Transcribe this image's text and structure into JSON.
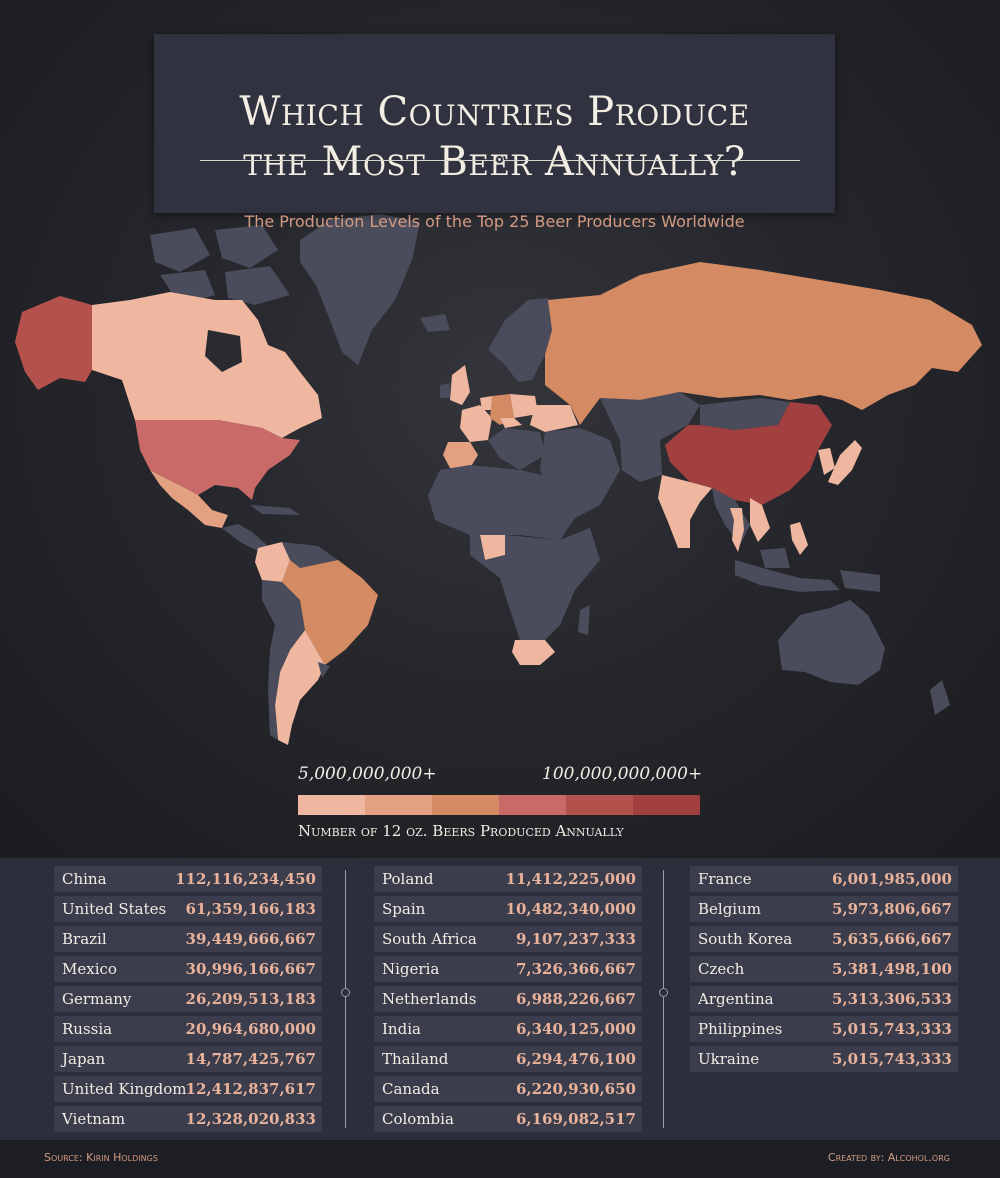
{
  "title": {
    "line1": "Which Countries Produce",
    "line2": "the Most Beer Annually?",
    "subtitle": "The Production Levels of the Top 25 Beer Producers Worldwide"
  },
  "legend": {
    "min_label": "5,000,000,000+",
    "max_label": "100,000,000,000+",
    "caption": "Number of 12 oz. Beers Produced Annually",
    "colors": [
      "#efb7a0",
      "#e3a181",
      "#d48b63",
      "#c96a68",
      "#b4514d",
      "#a24040"
    ]
  },
  "map_colors": {
    "no_data": "#4b4c5b",
    "tier1": "#efb7a0",
    "tier3": "#d48b63",
    "tier4": "#c96a68",
    "tier5": "#b4514d",
    "tier6": "#a24040"
  },
  "table": {
    "columns": [
      [
        {
          "country": "China",
          "value": "112,116,234,450"
        },
        {
          "country": "United States",
          "value": "61,359,166,183"
        },
        {
          "country": "Brazil",
          "value": "39,449,666,667"
        },
        {
          "country": "Mexico",
          "value": "30,996,166,667"
        },
        {
          "country": "Germany",
          "value": "26,209,513,183"
        },
        {
          "country": "Russia",
          "value": "20,964,680,000"
        },
        {
          "country": "Japan",
          "value": "14,787,425,767"
        },
        {
          "country": "United Kingdom",
          "value": "12,412,837,617"
        },
        {
          "country": "Vietnam",
          "value": "12,328,020,833"
        }
      ],
      [
        {
          "country": "Poland",
          "value": "11,412,225,000"
        },
        {
          "country": "Spain",
          "value": "10,482,340,000"
        },
        {
          "country": "South Africa",
          "value": "9,107,237,333"
        },
        {
          "country": "Nigeria",
          "value": "7,326,366,667"
        },
        {
          "country": "Netherlands",
          "value": "6,988,226,667"
        },
        {
          "country": "India",
          "value": "6,340,125,000"
        },
        {
          "country": "Thailand",
          "value": "6,294,476,100"
        },
        {
          "country": "Canada",
          "value": "6,220,930,650"
        },
        {
          "country": "Colombia",
          "value": "6,169,082,517"
        }
      ],
      [
        {
          "country": "France",
          "value": "6,001,985,000"
        },
        {
          "country": "Belgium",
          "value": "5,973,806,667"
        },
        {
          "country": "South Korea",
          "value": "5,635,666,667"
        },
        {
          "country": "Czech",
          "value": "5,381,498,100"
        },
        {
          "country": "Argentina",
          "value": "5,313,306,533"
        },
        {
          "country": "Philippines",
          "value": "5,015,743,333"
        },
        {
          "country": "Ukraine",
          "value": "5,015,743,333"
        }
      ]
    ]
  },
  "footer": {
    "source": "Source: Kirin Holdings",
    "credit": "Created by: Alcohol.org"
  }
}
